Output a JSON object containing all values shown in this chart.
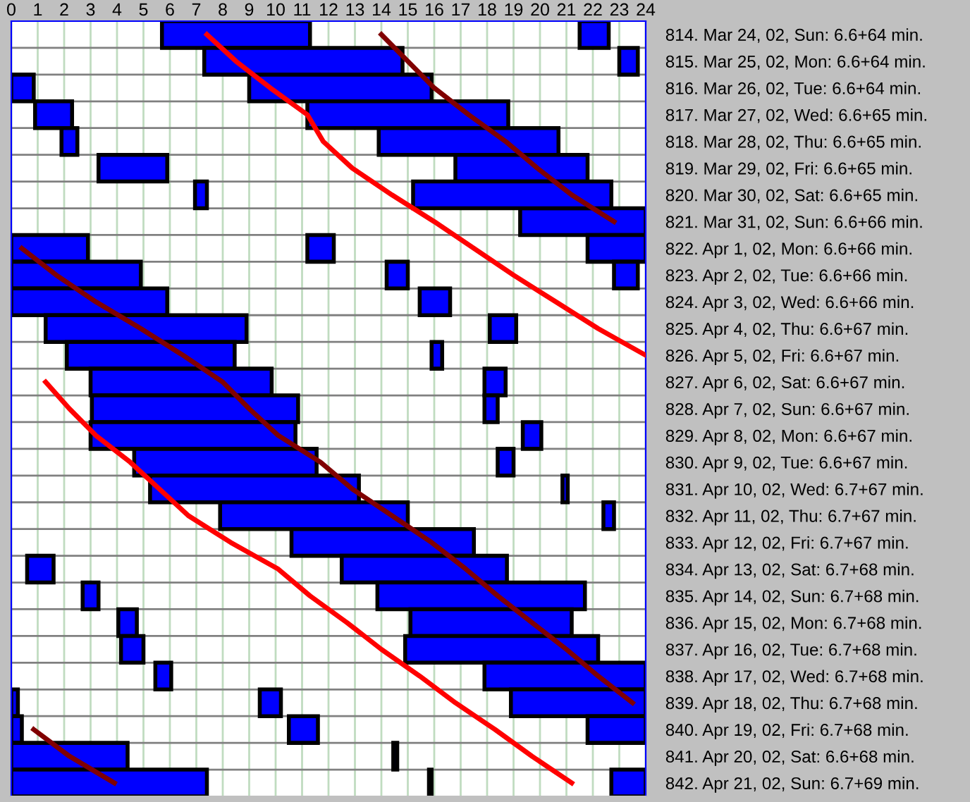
{
  "chart_data": {
    "type": "bar",
    "orientation": "horizontal",
    "categories": [
      "814. Mar 24, 02, Sun: 6.6+64 min.",
      "815. Mar 25, 02, Mon: 6.6+64 min.",
      "816. Mar 26, 02, Tue: 6.6+64 min.",
      "817. Mar 27, 02, Wed: 6.6+65 min.",
      "818. Mar 28, 02, Thu: 6.6+65 min.",
      "819. Mar 29, 02, Fri: 6.6+65 min.",
      "820. Mar 30, 02, Sat: 6.6+65 min.",
      "821. Mar 31, 02, Sun: 6.6+66 min.",
      "822. Apr 1, 02, Mon: 6.6+66 min.",
      "823. Apr 2, 02, Tue: 6.6+66 min.",
      "824. Apr 3, 02, Wed: 6.6+66 min.",
      "825. Apr 4, 02, Thu: 6.6+67 min.",
      "826. Apr 5, 02, Fri: 6.6+67 min.",
      "827. Apr 6, 02, Sat: 6.6+67 min.",
      "828. Apr 7, 02, Sun: 6.6+67 min.",
      "829. Apr 8, 02, Mon: 6.6+67 min.",
      "830. Apr 9, 02, Tue: 6.6+67 min.",
      "831. Apr 10, 02, Wed: 6.7+67 min.",
      "832. Apr 11, 02, Thu: 6.7+67 min.",
      "833. Apr 12, 02, Fri: 6.7+67 min.",
      "834. Apr 13, 02, Sat: 6.7+68 min.",
      "835. Apr 14, 02, Sun: 6.7+68 min.",
      "836. Apr 15, 02, Mon: 6.7+68 min.",
      "837. Apr 16, 02, Tue: 6.7+68 min.",
      "838. Apr 17, 02, Wed: 6.7+68 min.",
      "839. Apr 18, 02, Thu: 6.7+68 min.",
      "840. Apr 19, 02, Fri: 6.7+68 min.",
      "841. Apr 20, 02, Sat: 6.6+68 min.",
      "842. Apr 21, 02, Sun: 6.7+69 min."
    ],
    "series": [
      {
        "color": "#0000ff",
        "base": [
          5.7,
          7.3,
          0,
          0.9,
          1.9,
          3.3,
          6.95,
          19.25,
          0,
          0,
          0,
          1.3,
          2.1,
          3.0,
          3.05,
          3.0,
          4.65,
          5.25,
          7.9,
          10.6,
          0.6,
          2.7,
          4.05,
          4.15,
          5.45,
          0,
          0,
          0,
          0
        ],
        "values": [
          5.6,
          7.5,
          0.85,
          1.4,
          0.6,
          2.6,
          0.45,
          4.75,
          2.9,
          4.9,
          5.9,
          7.6,
          6.35,
          6.85,
          7.8,
          7.75,
          6.9,
          7.9,
          7.1,
          6.9,
          1.0,
          0.6,
          0.7,
          0.85,
          0.6,
          0.25,
          0.4,
          4.4,
          7.4
        ]
      },
      {
        "color": "#0000ff",
        "base": [
          21.5,
          23.0,
          9.0,
          11.2,
          13.9,
          16.8,
          15.2,
          null,
          11.2,
          14.2,
          15.45,
          18.1,
          15.9,
          17.9,
          17.9,
          19.35,
          18.4,
          20.85,
          22.4,
          null,
          12.5,
          13.85,
          15.1,
          14.9,
          17.9,
          9.4,
          10.5,
          14.45,
          15.8
        ],
        "values": [
          1.1,
          0.7,
          6.9,
          7.6,
          6.8,
          5.0,
          7.5,
          null,
          1.0,
          0.8,
          1.15,
          1.0,
          0.4,
          0.8,
          0.5,
          0.7,
          0.6,
          0.2,
          0.4,
          null,
          6.25,
          7.85,
          6.1,
          7.3,
          6.1,
          0.8,
          1.1,
          0.15,
          0.1
        ]
      },
      {
        "color": "#0000ff",
        "base": [
          null,
          null,
          null,
          null,
          null,
          null,
          null,
          null,
          21.8,
          22.8,
          null,
          null,
          null,
          null,
          null,
          null,
          null,
          null,
          null,
          null,
          null,
          null,
          null,
          null,
          null,
          18.9,
          21.8,
          null,
          22.7
        ],
        "values": [
          null,
          null,
          null,
          null,
          null,
          null,
          null,
          null,
          2.2,
          0.9,
          null,
          null,
          null,
          null,
          null,
          null,
          null,
          null,
          null,
          null,
          null,
          null,
          null,
          null,
          null,
          5.1,
          2.2,
          null,
          1.3
        ]
      },
      {
        "type": "line",
        "color": "#ff0000",
        "values": [
          7.4,
          8.5,
          9.8,
          11.2,
          11.8,
          12.9,
          14.4,
          16.0,
          17.5,
          19.0,
          20.6,
          22.2,
          24.0,
          null,
          null,
          null,
          null,
          null,
          null,
          null,
          null,
          null,
          null,
          null,
          null,
          null,
          null,
          null,
          null
        ]
      },
      {
        "type": "line",
        "color": "#800000",
        "values": [
          14.0,
          15.0,
          16.0,
          17.3,
          18.7,
          19.9,
          21.2,
          22.8,
          null,
          null,
          null,
          null,
          null,
          null,
          null,
          null,
          null,
          null,
          null,
          null,
          null,
          null,
          null,
          null,
          null,
          null,
          null,
          null,
          null
        ]
      },
      {
        "type": "line",
        "color": "#800000",
        "values": [
          null,
          null,
          null,
          null,
          null,
          null,
          null,
          null,
          0.4,
          1.7,
          3.2,
          4.9,
          6.5,
          8.0,
          9.0,
          10.1,
          11.7,
          12.9,
          14.4,
          15.9,
          17.2,
          18.4,
          19.7,
          21.0,
          22.2,
          23.5,
          null,
          null,
          null
        ]
      },
      {
        "type": "line",
        "color": "#ff0000",
        "values": [
          null,
          null,
          null,
          null,
          null,
          null,
          null,
          null,
          null,
          null,
          null,
          null,
          null,
          1.3,
          2.2,
          3.2,
          4.5,
          5.6,
          6.7,
          8.3,
          10.1,
          11.3,
          12.7,
          14.0,
          15.45,
          16.8,
          18.3,
          19.7,
          21.2
        ]
      },
      {
        "type": "line",
        "color": "#800000",
        "values": [
          null,
          null,
          null,
          null,
          null,
          null,
          null,
          null,
          null,
          null,
          null,
          null,
          null,
          null,
          null,
          null,
          null,
          null,
          null,
          null,
          null,
          null,
          null,
          null,
          null,
          null,
          0.85,
          2.2,
          3.9
        ]
      }
    ],
    "xlim": [
      0,
      24
    ],
    "xticks": [
      0,
      1,
      2,
      3,
      4,
      5,
      6,
      7,
      8,
      9,
      10,
      11,
      12,
      13,
      14,
      15,
      16,
      17,
      18,
      19,
      20,
      21,
      22,
      23,
      24
    ],
    "grid": true
  }
}
